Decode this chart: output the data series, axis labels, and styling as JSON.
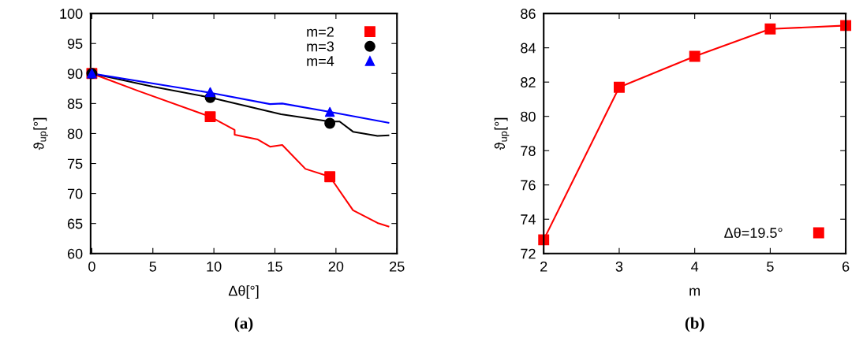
{
  "chart_data": [
    {
      "type": "line",
      "xlabel": "Δθ[°]",
      "ylabel": "ϑ$_{up}$[°]",
      "xlim": [
        -0.1,
        25
      ],
      "ylim": [
        60,
        100
      ],
      "xticks": [
        0,
        5,
        10,
        15,
        20,
        25
      ],
      "yticks": [
        60,
        65,
        70,
        75,
        80,
        85,
        90,
        95,
        100
      ],
      "grid": false,
      "legend": "top right",
      "annotations": [
        "(a)"
      ],
      "series": [
        {
          "color": "#ff0000",
          "marker": "none",
          "x": [
            0,
            3.8,
            9.7,
            11.7,
            11.7,
            13.6,
            14.6,
            15.6,
            17.5,
            19.5,
            21.4,
            23.4,
            24.3
          ],
          "values": [
            90,
            87.1,
            82.8,
            80.6,
            79.8,
            79.0,
            77.8,
            78.1,
            74.1,
            72.8,
            67.2,
            65.1,
            64.5
          ]
        },
        {
          "color": "#000000",
          "marker": "none",
          "x": [
            0,
            5,
            9.7,
            15.5,
            19.5,
            20.3,
            21.4,
            23.4,
            24.3
          ],
          "values": [
            90,
            87.8,
            86.0,
            83.2,
            82.0,
            82.0,
            80.3,
            79.6,
            79.7
          ]
        },
        {
          "color": "#0000ff",
          "marker": "none",
          "x": [
            0,
            9.7,
            14.6,
            15.6,
            19.5,
            24.3
          ],
          "values": [
            90,
            86.8,
            84.9,
            85.0,
            83.6,
            81.8
          ]
        },
        {
          "type": "scatter",
          "name": "m=2",
          "color": "#ff0000",
          "marker": "square",
          "x": [
            0,
            9.7,
            19.5
          ],
          "values": [
            90,
            82.8,
            72.8
          ]
        },
        {
          "type": "scatter",
          "name": "m=3",
          "color": "#000000",
          "marker": "circle",
          "x": [
            0,
            9.7,
            19.5
          ],
          "values": [
            90,
            86.0,
            81.7
          ]
        },
        {
          "type": "scatter",
          "name": "m=4",
          "color": "#0000ff",
          "marker": "triangle",
          "x": [
            0,
            9.7,
            19.5
          ],
          "values": [
            90,
            86.9,
            83.6
          ]
        }
      ]
    },
    {
      "type": "line",
      "xlabel": "m",
      "ylabel": "ϑ$_{up}$[°]",
      "xlim": [
        2,
        6
      ],
      "ylim": [
        72,
        86
      ],
      "xticks": [
        2,
        3,
        4,
        5,
        6
      ],
      "yticks": [
        72,
        74,
        76,
        78,
        80,
        82,
        84,
        86
      ],
      "grid": false,
      "legend": "bottom right",
      "annotations": [
        "(b)"
      ],
      "series": [
        {
          "name": "Δθ=19.5°",
          "color": "#ff0000",
          "marker": "square",
          "x": [
            2,
            3,
            4,
            5,
            6
          ],
          "values": [
            72.8,
            81.7,
            83.5,
            85.1,
            85.3
          ]
        }
      ]
    }
  ]
}
